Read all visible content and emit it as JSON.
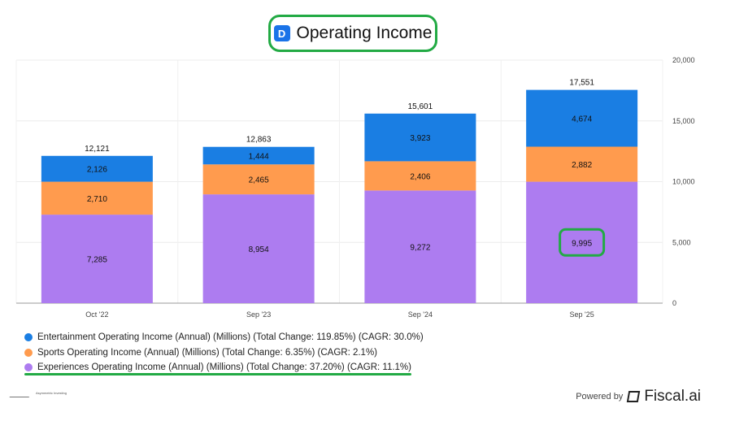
{
  "header": {
    "title": "Operating Income",
    "logo": "D"
  },
  "chart_data": {
    "type": "bar",
    "stacked": true,
    "title": "Operating Income",
    "categories": [
      "Oct '22",
      "Sep '23",
      "Sep '24",
      "Sep '25"
    ],
    "series": [
      {
        "name": "Experiences Operating Income (Annual) (Millions) (Total Change: 37.20%) (CAGR: 11.1%)",
        "color": "#ad7cf0",
        "values": [
          7285,
          8954,
          9272,
          9995
        ],
        "labels": [
          "7,285",
          "8,954",
          "9,272",
          "9,995"
        ]
      },
      {
        "name": "Sports Operating Income (Annual) (Millions) (Total Change: 6.35%) (CAGR: 2.1%)",
        "color": "#ff9b4e",
        "values": [
          2710,
          2465,
          2406,
          2882
        ],
        "labels": [
          "2,710",
          "2,465",
          "2,406",
          "2,882"
        ]
      },
      {
        "name": "Entertainment Operating Income (Annual) (Millions) (Total Change: 119.85%) (CAGR: 30.0%)",
        "color": "#1a7ee3",
        "values": [
          2126,
          1444,
          3923,
          4674
        ],
        "labels": [
          "2,126",
          "1,444",
          "3,923",
          "4,674"
        ]
      }
    ],
    "totals": [
      "12,121",
      "12,863",
      "15,601",
      "17,551"
    ],
    "yticks": [
      0,
      5000,
      10000,
      15000,
      20000
    ],
    "ytick_labels": [
      "0",
      "5,000",
      "10,000",
      "15,000",
      "20,000"
    ],
    "ylim": [
      0,
      20000
    ],
    "y_axis_side": "right",
    "highlight": {
      "category": "Sep '25",
      "series": "Experiences",
      "label": "9,995"
    }
  },
  "legend": [
    {
      "label": "Entertainment Operating Income (Annual) (Millions) (Total Change: 119.85%) (CAGR: 30.0%)",
      "color": "#1a7ee3"
    },
    {
      "label": "Sports Operating Income (Annual) (Millions) (Total Change: 6.35%) (CAGR: 2.1%)",
      "color": "#ff9b4e"
    },
    {
      "label": "Experiences Operating Income (Annual) (Millions) (Total Change: 37.20%) (CAGR: 11.1%)",
      "color": "#ad7cf0"
    }
  ],
  "footer": {
    "powered_by": "Powered by",
    "brand": "Fiscal.ai",
    "watermark": "Asymmetric Investing"
  }
}
